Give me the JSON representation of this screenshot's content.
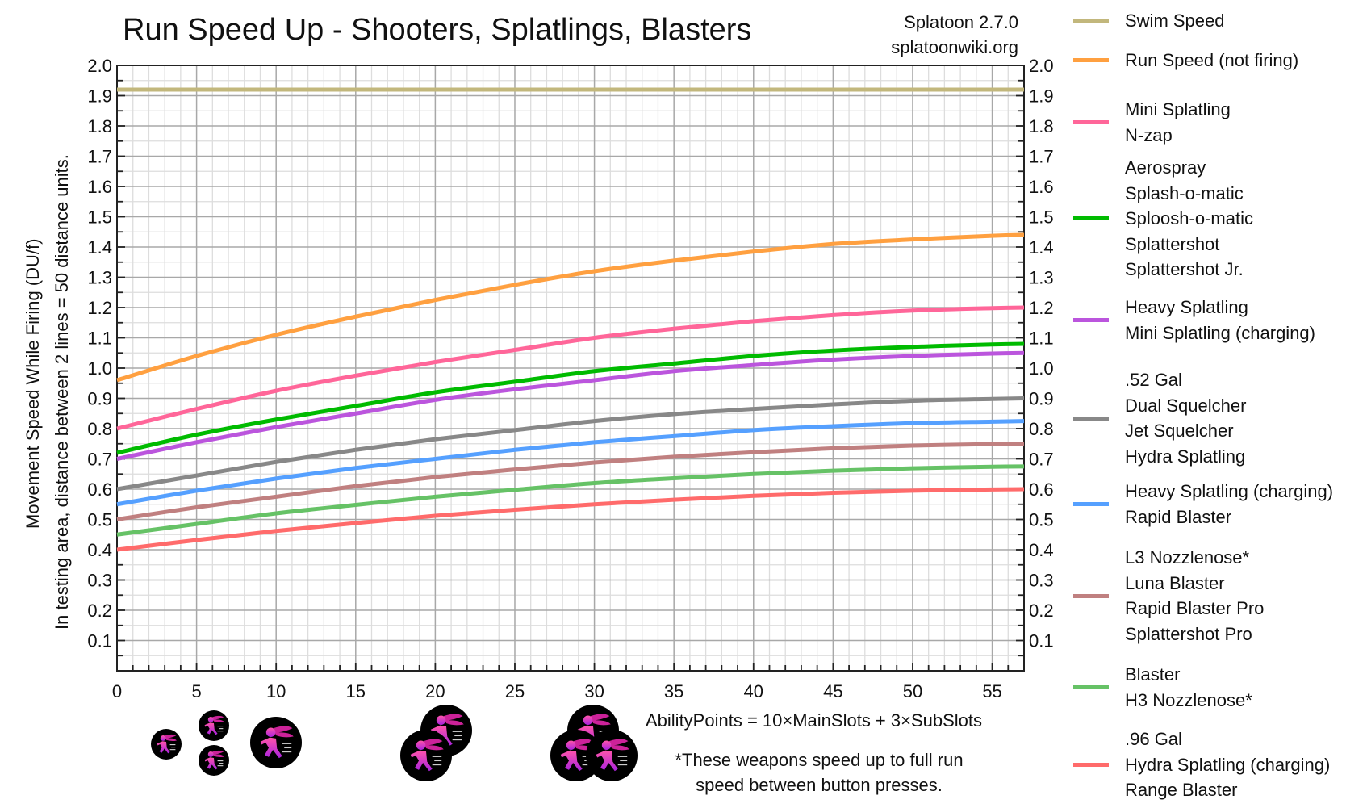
{
  "header": {
    "title": "Run Speed Up - Shooters, Splatlings, Blasters",
    "version": "Splatoon 2.7.0",
    "source": "splatoonwiki.org"
  },
  "axes": {
    "ylabel_line1": "Movement Speed While Firing (DU/f)",
    "ylabel_line2": "In testing area, distance between 2 lines = 50 distance units.",
    "y_ticks": [
      "0.1",
      "0.2",
      "0.3",
      "0.4",
      "0.5",
      "0.6",
      "0.7",
      "0.8",
      "0.9",
      "1.0",
      "1.1",
      "1.2",
      "1.3",
      "1.4",
      "1.5",
      "1.6",
      "1.7",
      "1.8",
      "1.9",
      "2.0"
    ],
    "x_ticks": [
      "0",
      "5",
      "10",
      "15",
      "20",
      "25",
      "30",
      "35",
      "40",
      "45",
      "50",
      "55"
    ]
  },
  "annotations": {
    "formula": "AbilityPoints = 10×MainSlots + 3×SubSlots",
    "footnote_line1": "*These weapons speed up to full run",
    "footnote_line2": "speed between button presses."
  },
  "icons": [
    {
      "name": "run-speed-up-icon",
      "x": 3,
      "size": "small"
    },
    {
      "name": "run-speed-up-icon",
      "x": 6,
      "size": "small"
    },
    {
      "name": "run-speed-up-icon",
      "x": 6,
      "size": "small"
    },
    {
      "name": "run-speed-up-icon",
      "x": 10,
      "size": "large"
    },
    {
      "name": "run-speed-up-icon",
      "x": 19,
      "size": "large"
    },
    {
      "name": "run-speed-up-icon",
      "x": 20.5,
      "size": "large"
    },
    {
      "name": "run-speed-up-icon",
      "x": 28.5,
      "size": "large"
    },
    {
      "name": "run-speed-up-icon",
      "x": 30,
      "size": "large"
    },
    {
      "name": "run-speed-up-icon",
      "x": 31,
      "size": "large"
    }
  ],
  "legend": [
    {
      "color": "#c2b77c",
      "lines": [
        "Swim Speed"
      ]
    },
    {
      "color": "#ffa040",
      "lines": [
        "Run Speed (not firing)"
      ]
    },
    {
      "color": "#ff6699",
      "lines": [
        "Mini Splatling",
        "N-zap"
      ]
    },
    {
      "color": "#00bb00",
      "lines": [
        "Aerospray",
        "Splash-o-matic",
        "Sploosh-o-matic",
        "Splattershot",
        "Splattershot Jr."
      ]
    },
    {
      "color": "#bb55dd",
      "lines": [
        "Heavy Splatling",
        "Mini Splatling (charging)"
      ]
    },
    {
      "color": "#888888",
      "lines": [
        ".52 Gal",
        "Dual Squelcher",
        "Jet Squelcher",
        "Hydra Splatling"
      ]
    },
    {
      "color": "#55a0ff",
      "lines": [
        "Heavy Splatling (charging)",
        "Rapid Blaster"
      ]
    },
    {
      "color": "#c08080",
      "lines": [
        "L3 Nozzlenose*",
        "Luna Blaster",
        "Rapid Blaster Pro",
        "Splattershot Pro"
      ]
    },
    {
      "color": "#66c266",
      "lines": [
        "Blaster",
        "H3 Nozzlenose*"
      ]
    },
    {
      "color": "#ff6b6b",
      "lines": [
        ".96 Gal",
        "Hydra Splatling (charging)",
        "Range Blaster"
      ]
    }
  ],
  "chart_data": {
    "type": "line",
    "title": "Run Speed Up - Shooters, Splatlings, Blasters",
    "subtitle": "Splatoon 2.7.0 / splatoonwiki.org",
    "xlabel": "AbilityPoints = 10×MainSlots + 3×SubSlots",
    "ylabel": "Movement Speed While Firing (DU/f)",
    "xlim": [
      0,
      57
    ],
    "ylim": [
      0,
      2.0
    ],
    "grid": true,
    "legend_position": "right",
    "x": [
      0,
      5,
      10,
      15,
      20,
      25,
      30,
      35,
      40,
      45,
      50,
      55,
      57
    ],
    "series": [
      {
        "name": "Swim Speed",
        "color": "#c2b77c",
        "values": [
          1.92,
          1.92,
          1.92,
          1.92,
          1.92,
          1.92,
          1.92,
          1.92,
          1.92,
          1.92,
          1.92,
          1.92,
          1.92
        ]
      },
      {
        "name": "Run Speed (not firing)",
        "color": "#ffa040",
        "values": [
          0.96,
          1.04,
          1.11,
          1.17,
          1.225,
          1.275,
          1.32,
          1.355,
          1.385,
          1.41,
          1.425,
          1.437,
          1.44
        ]
      },
      {
        "name": "Mini Splatling / N-zap",
        "color": "#ff6699",
        "values": [
          0.8,
          0.865,
          0.925,
          0.975,
          1.02,
          1.06,
          1.1,
          1.13,
          1.155,
          1.175,
          1.19,
          1.198,
          1.2
        ]
      },
      {
        "name": "Aerospray / Splash-o-matic / Sploosh-o-matic / Splattershot / Splattershot Jr.",
        "color": "#00bb00",
        "values": [
          0.72,
          0.78,
          0.83,
          0.875,
          0.92,
          0.955,
          0.99,
          1.015,
          1.04,
          1.058,
          1.07,
          1.078,
          1.08
        ]
      },
      {
        "name": "Heavy Splatling / Mini Splatling (charging)",
        "color": "#bb55dd",
        "values": [
          0.7,
          0.755,
          0.805,
          0.85,
          0.895,
          0.93,
          0.96,
          0.99,
          1.01,
          1.028,
          1.04,
          1.048,
          1.05
        ]
      },
      {
        "name": ".52 Gal / Dual Squelcher / Jet Squelcher / Hydra Splatling",
        "color": "#888888",
        "values": [
          0.6,
          0.645,
          0.69,
          0.73,
          0.765,
          0.795,
          0.825,
          0.848,
          0.865,
          0.88,
          0.892,
          0.898,
          0.9
        ]
      },
      {
        "name": "Heavy Splatling (charging) / Rapid Blaster",
        "color": "#55a0ff",
        "values": [
          0.55,
          0.595,
          0.635,
          0.67,
          0.7,
          0.73,
          0.755,
          0.775,
          0.795,
          0.808,
          0.818,
          0.823,
          0.825
        ]
      },
      {
        "name": "L3 Nozzlenose* / Luna Blaster / Rapid Blaster Pro / Splattershot Pro",
        "color": "#c08080",
        "values": [
          0.5,
          0.54,
          0.575,
          0.61,
          0.64,
          0.665,
          0.688,
          0.707,
          0.722,
          0.735,
          0.744,
          0.749,
          0.75
        ]
      },
      {
        "name": "Blaster / H3 Nozzlenose*",
        "color": "#66c266",
        "values": [
          0.45,
          0.485,
          0.52,
          0.548,
          0.575,
          0.598,
          0.62,
          0.636,
          0.65,
          0.661,
          0.669,
          0.674,
          0.675
        ]
      },
      {
        "name": ".96 Gal / Hydra Splatling (charging) / Range Blaster",
        "color": "#ff6b6b",
        "values": [
          0.4,
          0.432,
          0.462,
          0.488,
          0.512,
          0.532,
          0.55,
          0.565,
          0.578,
          0.588,
          0.595,
          0.599,
          0.6
        ]
      }
    ]
  }
}
